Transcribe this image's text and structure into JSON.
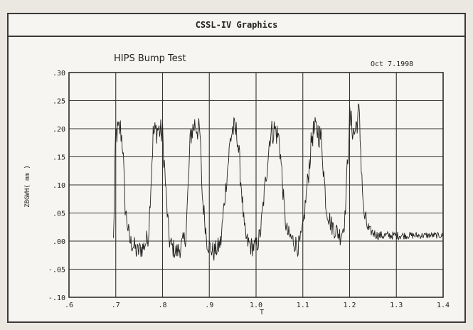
{
  "window": {
    "title": "CSSL-IV Graphics"
  },
  "chart_data": {
    "type": "line",
    "title": "HIPS Bump Test",
    "date": "Oct 7.1998",
    "xlabel": "T",
    "ylabel": "ZBGWH( mm )",
    "xlim": [
      0.6,
      1.4
    ],
    "ylim": [
      -0.1,
      0.3
    ],
    "x_ticks": [
      0.6,
      0.7,
      0.8,
      0.9,
      1.0,
      1.1,
      1.2,
      1.3,
      1.4
    ],
    "x_tick_labels": [
      ".6",
      ".7",
      ".8",
      ".9",
      "1.0",
      "1.1",
      "1.2",
      "1.3",
      "1.4"
    ],
    "y_ticks": [
      0.3,
      0.25,
      0.2,
      0.15,
      0.1,
      0.05,
      0.0,
      -0.05,
      -0.1
    ],
    "y_tick_labels": [
      ".30",
      ".25",
      ".20",
      ".15",
      ".10",
      ".05",
      ".00",
      "-.05",
      "-.10"
    ],
    "grid": true,
    "series": [
      {
        "color": "#222222",
        "description_points": {
          "x": [
            0.6,
            0.695,
            0.7,
            0.71,
            0.715,
            0.72,
            0.73,
            0.74,
            0.745,
            0.76,
            0.77,
            0.78,
            0.79,
            0.8,
            0.81,
            0.815,
            0.82,
            0.83,
            0.84,
            0.845,
            0.85,
            0.86,
            0.87,
            0.88,
            0.885,
            0.895,
            0.9,
            0.91,
            0.92,
            0.925,
            0.93,
            0.945,
            0.95,
            0.96,
            0.97,
            0.975,
            0.98,
            0.99,
            1.0,
            1.005,
            1.01,
            1.03,
            1.04,
            1.05,
            1.06,
            1.065,
            1.07,
            1.08,
            1.09,
            1.095,
            1.1,
            1.12,
            1.13,
            1.14,
            1.15,
            1.16,
            1.17,
            1.18,
            1.185,
            1.19,
            1.2,
            1.21,
            1.22,
            1.23,
            1.24,
            1.26,
            1.28,
            1.3,
            1.32,
            1.34,
            1.36,
            1.38,
            1.4
          ],
          "y": [
            0.0,
            0.0,
            0.19,
            0.2,
            0.17,
            0.06,
            0.0,
            -0.01,
            -0.02,
            -0.01,
            0.01,
            0.19,
            0.2,
            0.19,
            0.05,
            0.0,
            -0.01,
            -0.02,
            -0.01,
            0.0,
            0.01,
            0.19,
            0.21,
            0.19,
            0.08,
            0.0,
            -0.01,
            -0.02,
            -0.01,
            0.0,
            0.05,
            0.18,
            0.2,
            0.19,
            0.08,
            0.02,
            0.0,
            -0.01,
            -0.01,
            0.0,
            0.02,
            0.19,
            0.2,
            0.18,
            0.06,
            0.02,
            0.01,
            0.0,
            -0.01,
            0.0,
            0.02,
            0.19,
            0.2,
            0.18,
            0.06,
            0.03,
            0.02,
            0.01,
            0.02,
            0.04,
            0.22,
            0.19,
            0.23,
            0.05,
            0.02,
            0.01,
            0.01,
            0.01,
            0.01,
            0.01,
            0.01,
            0.01,
            0.01
          ]
        }
      }
    ]
  }
}
